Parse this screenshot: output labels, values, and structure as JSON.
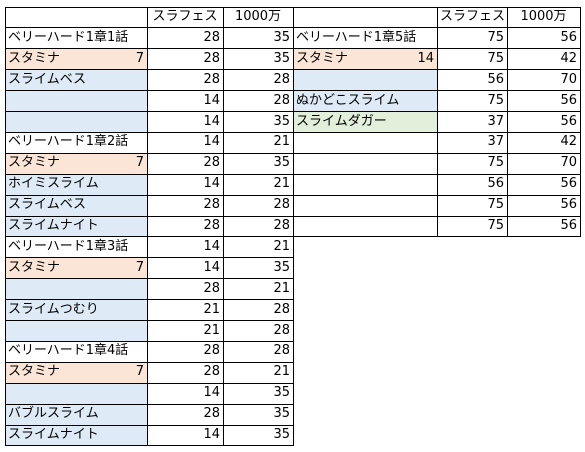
{
  "colors": {
    "stamina": "#fbe5d6",
    "monster": "#deebf7",
    "enemy_green": "#e2efda",
    "grid": "#d9d9d9",
    "border": "#000000"
  },
  "headers": {
    "left": [
      "スラフェス",
      "1000万"
    ],
    "right": [
      "スラフェス",
      "1000万"
    ]
  },
  "left_blocks": [
    {
      "title": "ベリーハード1章1話",
      "stamina_label": "スタミナ",
      "stamina": "7",
      "monsters": [
        {
          "name": "スライムベス",
          "row": 2
        }
      ],
      "rows": [
        [
          "28",
          "35"
        ],
        [
          "28",
          "35"
        ],
        [
          "28",
          "28"
        ],
        [
          "14",
          "28"
        ],
        [
          "14",
          "35"
        ]
      ]
    },
    {
      "title": "ベリーハード1章2話",
      "stamina_label": "スタミナ",
      "stamina": "7",
      "monsters": [
        {
          "name": "ホイミスライム",
          "row": 2
        },
        {
          "name": "スライムベス",
          "row": 3
        },
        {
          "name": "スライムナイト",
          "row": 4
        }
      ],
      "rows": [
        [
          "14",
          "21"
        ],
        [
          "28",
          "35"
        ],
        [
          "14",
          "21"
        ],
        [
          "28",
          "28"
        ],
        [
          "28",
          "28"
        ]
      ]
    },
    {
      "title": "ベリーハード1章3話",
      "stamina_label": "スタミナ",
      "stamina": "7",
      "monsters": [
        {
          "name": "スライムつむり",
          "row": 3
        }
      ],
      "rows": [
        [
          "14",
          "21"
        ],
        [
          "14",
          "35"
        ],
        [
          "28",
          "21"
        ],
        [
          "21",
          "28"
        ],
        [
          "21",
          "28"
        ]
      ]
    },
    {
      "title": "ベリーハード1章4話",
      "stamina_label": "スタミナ",
      "stamina": "7",
      "monsters": [
        {
          "name": "バブルスライム",
          "row": 3
        },
        {
          "name": "スライムナイト",
          "row": 4
        }
      ],
      "rows": [
        [
          "28",
          "28"
        ],
        [
          "28",
          "21"
        ],
        [
          "14",
          "35"
        ],
        [
          "28",
          "35"
        ],
        [
          "14",
          "35"
        ]
      ]
    }
  ],
  "right_block": {
    "title": "ベリーハード1章5話",
    "stamina_label": "スタミナ",
    "stamina": "14",
    "monsters": [
      {
        "name": "ぬかどこスライム",
        "row": 3,
        "color": "monster"
      },
      {
        "name": "スライムダガー",
        "row": 4,
        "color": "enemy_green"
      }
    ],
    "rows": [
      [
        "75",
        "56"
      ],
      [
        "75",
        "42"
      ],
      [
        "56",
        "70"
      ],
      [
        "75",
        "56"
      ],
      [
        "37",
        "56"
      ],
      [
        "37",
        "42"
      ],
      [
        "75",
        "70"
      ],
      [
        "56",
        "56"
      ],
      [
        "75",
        "56"
      ],
      [
        "75",
        "56"
      ]
    ]
  }
}
